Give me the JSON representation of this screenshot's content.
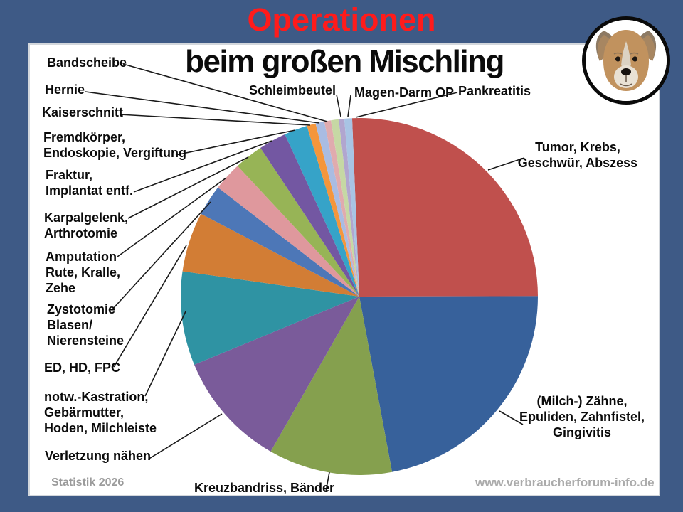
{
  "header": {
    "title_line1": "Operationen",
    "title_line1_color": "#FF1B1B",
    "title_line2": "beim großen Mischling"
  },
  "footer": {
    "statistic": "Statistik 2026",
    "website": "www.verbraucherforum-info.de"
  },
  "avatar": {
    "icon": "dog-photo"
  },
  "chart_data": {
    "type": "pie",
    "title": "Operationen beim großen Mischling",
    "start_angle_deg": -2.3,
    "total_pct": 100,
    "legend_position": "callout-labels",
    "slices": [
      {
        "id": "tumor",
        "label": "Tumor, Krebs, Geschwür, Abszess",
        "label_lines": [
          "Tumor, Krebs,",
          "Geschwür, Abszess"
        ],
        "value_pct": 25.6,
        "color": "#C0504D"
      },
      {
        "id": "zaehne",
        "label": "(Milch-) Zähne, Epuliden, Zahnfistel, Gingivitis",
        "label_lines": [
          "(Milch-) Zähne,",
          "Epuliden, Zahnfistel,",
          "Gingivitis"
        ],
        "value_pct": 22.1,
        "color": "#37619B"
      },
      {
        "id": "kreuzbandriss",
        "label": "Kreuzbandriss, Bänder",
        "label_lines": [
          "Kreuzbandriss, Bänder"
        ],
        "value_pct": 11.2,
        "color": "#85A04E"
      },
      {
        "id": "verletzung-naehen",
        "label": "Verletzung nähen",
        "label_lines": [
          "Verletzung nähen"
        ],
        "value_pct": 10.5,
        "color": "#7A5B9A"
      },
      {
        "id": "kastration",
        "label": "notw.-Kastration, Gebärmutter, Hoden, Milchleiste",
        "label_lines": [
          "notw.-Kastration,",
          "Gebärmutter,",
          "Hoden, Milchleiste"
        ],
        "value_pct": 8.5,
        "color": "#2F93A3"
      },
      {
        "id": "ed-hd-fpc",
        "label": "ED, HD, FPC",
        "label_lines": [
          "ED, HD, FPC"
        ],
        "value_pct": 5.4,
        "color": "#D27D35"
      },
      {
        "id": "zystotomie",
        "label": "Zystotomie Blasen/ Nierensteine",
        "label_lines": [
          "Zystotomie",
          "Blasen/",
          "Nierensteine"
        ],
        "value_pct": 2.8,
        "color": "#4D77B7"
      },
      {
        "id": "amputation",
        "label": "Amputation Rute, Kralle, Zehe",
        "label_lines": [
          "Amputation",
          "Rute, Kralle,",
          "Zehe"
        ],
        "value_pct": 2.6,
        "color": "#DF989D"
      },
      {
        "id": "karpalgelenk",
        "label": "Karpalgelenk, Arthrotomie",
        "label_lines": [
          "Karpalgelenk,",
          "Arthrotomie"
        ],
        "value_pct": 2.6,
        "color": "#97B456"
      },
      {
        "id": "fraktur",
        "label": "Fraktur, Implantat entf.",
        "label_lines": [
          "Fraktur,",
          "Implantat entf."
        ],
        "value_pct": 2.5,
        "color": "#7357A2"
      },
      {
        "id": "fremdkoerper",
        "label": "Fremdkörper, Endoskopie, Vergiftung",
        "label_lines": [
          "Fremdkörper,",
          "Endoskopie, Vergiftung"
        ],
        "value_pct": 2.1,
        "color": "#36A3C8"
      },
      {
        "id": "kaiserschnitt",
        "label": "Kaiserschnitt",
        "label_lines": [
          "Kaiserschnitt"
        ],
        "value_pct": 0.8,
        "color": "#F4963C"
      },
      {
        "id": "hernie",
        "label": "Hernie",
        "label_lines": [
          "Hernie"
        ],
        "value_pct": 0.8,
        "color": "#A9BCE2"
      },
      {
        "id": "bandscheibe",
        "label": "Bandscheibe",
        "label_lines": [
          "Bandscheibe"
        ],
        "value_pct": 0.6,
        "color": "#E0ABAE"
      },
      {
        "id": "schleimbeutel",
        "label": "Schleimbeutel",
        "label_lines": [
          "Schleimbeutel"
        ],
        "value_pct": 0.7,
        "color": "#C6D8A4"
      },
      {
        "id": "magen-darm-op",
        "label": "Magen-Darm OP",
        "label_lines": [
          "Magen-Darm OP"
        ],
        "value_pct": 0.5,
        "color": "#B1A6CF"
      },
      {
        "id": "pankreatitis",
        "label": "Pankreatitis",
        "label_lines": [
          "Pankreatitis"
        ],
        "value_pct": 0.7,
        "color": "#A8C4E4"
      }
    ]
  }
}
